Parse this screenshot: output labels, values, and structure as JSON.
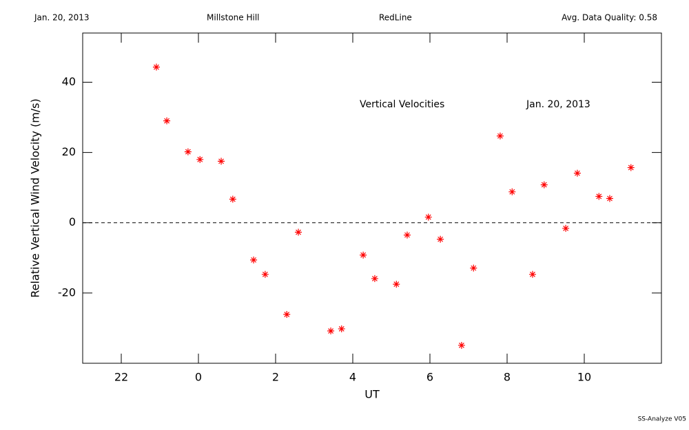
{
  "header": {
    "date": "Jan. 20, 2013",
    "site": "Millstone Hill",
    "line": "RedLine",
    "quality": "Avg. Data Quality: 0.58"
  },
  "footer": "SS-Analyze V05",
  "chart_data": {
    "type": "scatter",
    "annotations": [
      "Vertical Velocities",
      "Jan. 20, 2013"
    ],
    "xlabel": "UT",
    "ylabel": "Relative Vertical Wind Velocity (m/s)",
    "color": "#ff0000",
    "marker": "asterisk",
    "xlim": [
      -3,
      12
    ],
    "ylim": [
      -40,
      54
    ],
    "xticks": [
      {
        "value": -2,
        "label": "22"
      },
      0,
      2,
      4,
      6,
      8,
      10
    ],
    "yticks": [
      -20,
      0,
      20,
      40
    ],
    "reference_line": 0,
    "x": [
      -1.09,
      -0.82,
      -0.27,
      0.04,
      0.59,
      0.89,
      1.43,
      1.73,
      2.29,
      2.59,
      3.43,
      3.71,
      4.27,
      4.57,
      5.13,
      5.41,
      5.96,
      6.27,
      6.82,
      7.13,
      7.82,
      8.13,
      8.66,
      8.96,
      9.52,
      9.82,
      10.38,
      10.66,
      11.21
    ],
    "values": [
      44.3,
      29.0,
      20.2,
      18.0,
      17.5,
      6.7,
      -10.6,
      -14.7,
      -26.1,
      -2.7,
      -30.8,
      -30.2,
      -9.2,
      -15.9,
      -17.5,
      -3.5,
      1.6,
      -4.7,
      -34.9,
      -12.9,
      24.7,
      8.8,
      -14.7,
      10.8,
      -1.6,
      14.1,
      7.5,
      6.9,
      15.7
    ]
  }
}
